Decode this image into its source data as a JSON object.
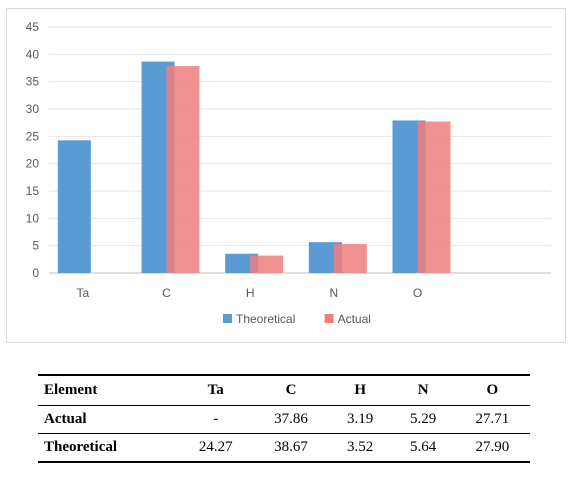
{
  "chart_data": {
    "type": "bar",
    "categories": [
      "Ta",
      "C",
      "H",
      "N",
      "O",
      ""
    ],
    "series": [
      {
        "name": "Theoretical",
        "color": "#5b9bd5",
        "values": [
          24.27,
          38.67,
          3.52,
          5.64,
          27.9,
          null
        ]
      },
      {
        "name": "Actual",
        "color": "#ef7f7f",
        "values": [
          null,
          37.86,
          3.19,
          5.29,
          27.71,
          null
        ]
      }
    ],
    "yticks": [
      0,
      5,
      10,
      15,
      20,
      25,
      30,
      35,
      40,
      45
    ],
    "ylim": [
      0,
      45
    ],
    "grid": true,
    "legend_position": "bottom",
    "title": "",
    "xlabel": "",
    "ylabel": ""
  },
  "table": {
    "headers": [
      "Element",
      "Ta",
      "C",
      "H",
      "N",
      "O"
    ],
    "rows": [
      [
        "Actual",
        "-",
        "37.86",
        "3.19",
        "5.29",
        "27.71"
      ],
      [
        "Theoretical",
        "24.27",
        "38.67",
        "3.52",
        "5.64",
        "27.90"
      ]
    ]
  }
}
